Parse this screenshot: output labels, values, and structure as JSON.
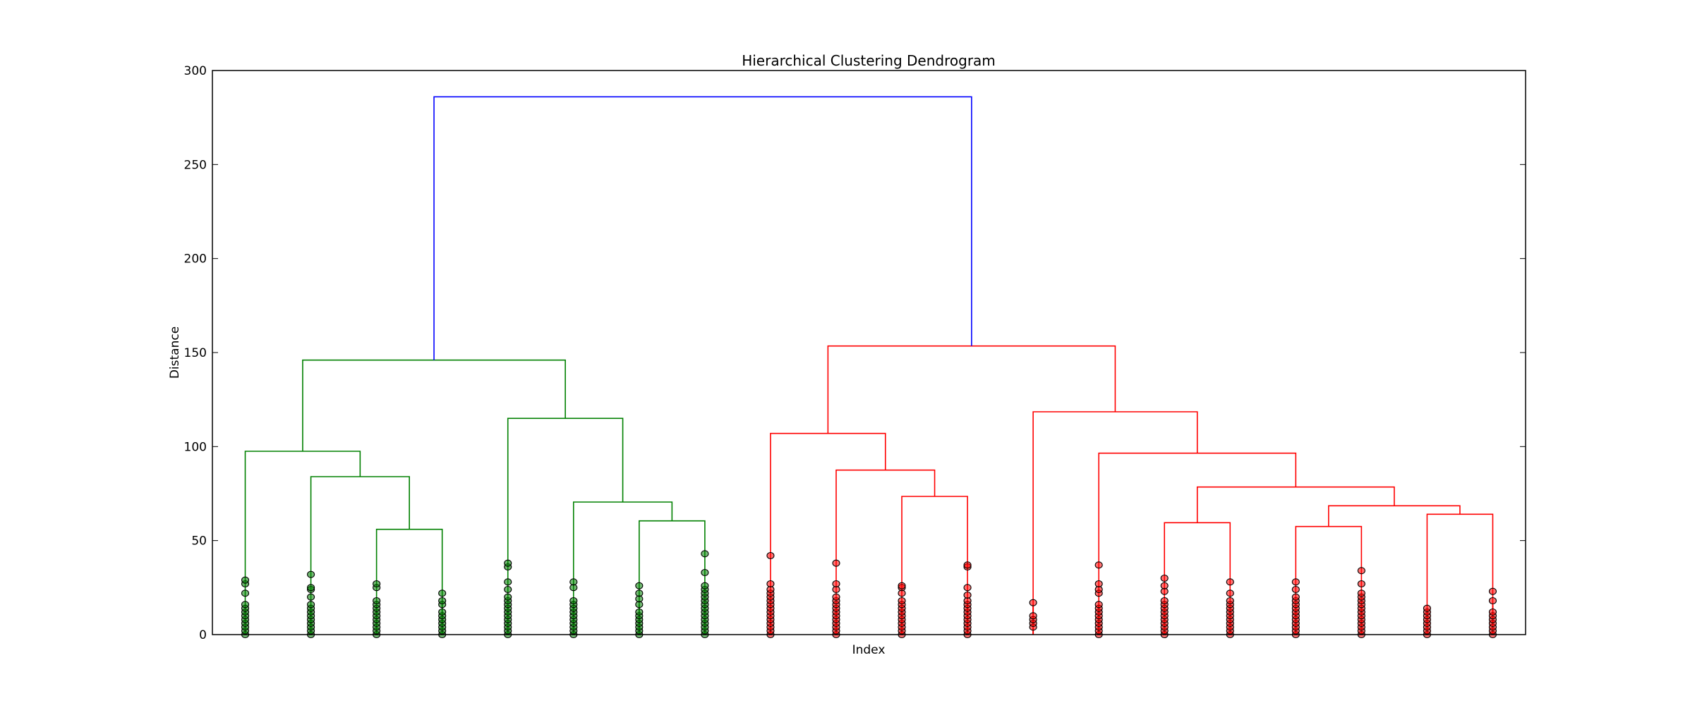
{
  "chart_data": {
    "type": "dendrogram",
    "title": "Hierarchical Clustering Dendrogram",
    "xlabel": "Index",
    "ylabel": "Distance",
    "ylim": [
      0,
      300
    ],
    "yticks": [
      0,
      50,
      100,
      150,
      200,
      250,
      300
    ],
    "grid": false,
    "colors": {
      "cluster_1": "#008000",
      "cluster_2": "#ff0000",
      "root": "#0000ff"
    },
    "leaves": [
      {
        "color": "cluster_1",
        "point_heights": [
          0,
          2,
          4,
          6,
          8,
          10,
          12,
          14,
          16,
          22,
          27,
          29
        ]
      },
      {
        "color": "cluster_1",
        "point_heights": [
          0,
          2,
          4,
          6,
          8,
          10,
          12,
          14,
          16,
          20,
          24,
          25,
          32
        ]
      },
      {
        "color": "cluster_1",
        "point_heights": [
          0,
          2,
          4,
          6,
          8,
          10,
          12,
          14,
          16,
          18,
          25,
          27
        ]
      },
      {
        "color": "cluster_1",
        "point_heights": [
          0,
          2,
          4,
          6,
          8,
          10,
          12,
          16,
          18,
          22
        ]
      },
      {
        "color": "cluster_1",
        "point_heights": [
          0,
          2,
          4,
          6,
          8,
          10,
          12,
          14,
          16,
          18,
          20,
          24,
          28,
          36,
          38
        ]
      },
      {
        "color": "cluster_1",
        "point_heights": [
          0,
          2,
          4,
          6,
          8,
          10,
          12,
          14,
          16,
          18,
          25,
          28
        ]
      },
      {
        "color": "cluster_1",
        "point_heights": [
          0,
          2,
          4,
          6,
          8,
          10,
          12,
          16,
          19,
          22,
          26
        ]
      },
      {
        "color": "cluster_1",
        "point_heights": [
          0,
          2,
          4,
          6,
          8,
          10,
          12,
          14,
          16,
          18,
          20,
          22,
          24,
          26,
          33,
          43
        ]
      },
      {
        "color": "cluster_2",
        "point_heights": [
          0,
          2,
          4,
          6,
          8,
          10,
          12,
          14,
          16,
          18,
          20,
          22,
          24,
          27,
          42
        ]
      },
      {
        "color": "cluster_2",
        "point_heights": [
          0,
          2,
          4,
          6,
          8,
          10,
          12,
          14,
          16,
          18,
          20,
          24,
          27,
          38
        ]
      },
      {
        "color": "cluster_2",
        "point_heights": [
          0,
          2,
          4,
          6,
          8,
          10,
          12,
          14,
          16,
          18,
          22,
          25,
          26
        ]
      },
      {
        "color": "cluster_2",
        "point_heights": [
          0,
          2,
          4,
          6,
          8,
          10,
          12,
          14,
          16,
          18,
          21,
          25,
          36,
          37
        ]
      },
      {
        "color": "cluster_2",
        "point_heights": [
          4,
          6,
          8,
          10,
          17
        ]
      },
      {
        "color": "cluster_2",
        "point_heights": [
          0,
          2,
          4,
          6,
          8,
          10,
          12,
          14,
          16,
          22,
          24,
          27,
          37
        ]
      },
      {
        "color": "cluster_2",
        "point_heights": [
          0,
          2,
          4,
          6,
          8,
          10,
          12,
          14,
          16,
          18,
          23,
          26,
          30
        ]
      },
      {
        "color": "cluster_2",
        "point_heights": [
          0,
          2,
          4,
          6,
          8,
          10,
          12,
          14,
          16,
          18,
          22,
          28
        ]
      },
      {
        "color": "cluster_2",
        "point_heights": [
          0,
          2,
          4,
          6,
          8,
          10,
          12,
          14,
          16,
          18,
          20,
          24,
          28
        ]
      },
      {
        "color": "cluster_2",
        "point_heights": [
          0,
          2,
          4,
          6,
          8,
          10,
          12,
          14,
          16,
          18,
          20,
          22,
          27,
          34
        ]
      },
      {
        "color": "cluster_2",
        "point_heights": [
          0,
          2,
          4,
          6,
          8,
          10,
          12,
          14
        ]
      },
      {
        "color": "cluster_2",
        "point_heights": [
          0,
          2,
          4,
          6,
          8,
          10,
          12,
          18,
          23
        ]
      }
    ],
    "merges": [
      {
        "id": "g1",
        "left": "L2",
        "right": "L3",
        "height": 56,
        "color": "cluster_1"
      },
      {
        "id": "g2",
        "left": "L1",
        "right": "g1",
        "height": 84,
        "color": "cluster_1"
      },
      {
        "id": "g3",
        "left": "L0",
        "right": "g2",
        "height": 97.5,
        "color": "cluster_1"
      },
      {
        "id": "g4",
        "left": "L6",
        "right": "L7",
        "height": 60.5,
        "color": "cluster_1"
      },
      {
        "id": "g5",
        "left": "L5",
        "right": "g4",
        "height": 70.5,
        "color": "cluster_1"
      },
      {
        "id": "g6",
        "left": "L4",
        "right": "g5",
        "height": 115,
        "color": "cluster_1"
      },
      {
        "id": "g7",
        "left": "g3",
        "right": "g6",
        "height": 146,
        "color": "cluster_1"
      },
      {
        "id": "r1",
        "left": "L10",
        "right": "L11",
        "height": 73.5,
        "color": "cluster_2"
      },
      {
        "id": "r2",
        "left": "L9",
        "right": "r1",
        "height": 87.5,
        "color": "cluster_2"
      },
      {
        "id": "r3",
        "left": "L8",
        "right": "r2",
        "height": 107,
        "color": "cluster_2"
      },
      {
        "id": "r4",
        "left": "L14",
        "right": "L15",
        "height": 59.5,
        "color": "cluster_2"
      },
      {
        "id": "r5",
        "left": "L16",
        "right": "L17",
        "height": 57.5,
        "color": "cluster_2"
      },
      {
        "id": "r6",
        "left": "L18",
        "right": "L19",
        "height": 64,
        "color": "cluster_2"
      },
      {
        "id": "r7",
        "left": "r5",
        "right": "r6",
        "height": 68.5,
        "color": "cluster_2"
      },
      {
        "id": "r8",
        "left": "r4",
        "right": "r7",
        "height": 78.5,
        "color": "cluster_2"
      },
      {
        "id": "r9",
        "left": "L13",
        "right": "r8",
        "height": 96.5,
        "color": "cluster_2"
      },
      {
        "id": "r10",
        "left": "L12",
        "right": "r9",
        "height": 118.5,
        "color": "cluster_2"
      },
      {
        "id": "r11",
        "left": "r3",
        "right": "r10",
        "height": 153.5,
        "color": "cluster_2"
      },
      {
        "id": "root",
        "left": "g7",
        "right": "r11",
        "height": 286,
        "color": "root"
      }
    ]
  }
}
